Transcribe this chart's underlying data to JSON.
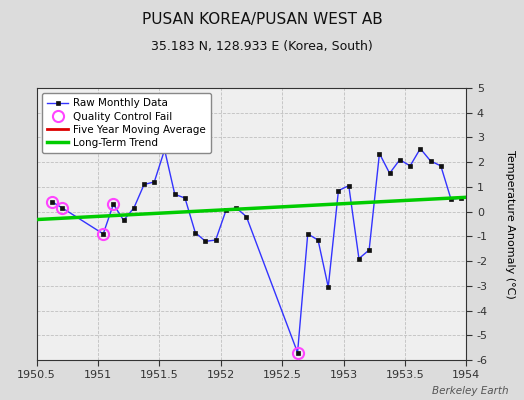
{
  "title": "PUSAN KOREA/PUSAN WEST AB",
  "subtitle": "35.183 N, 128.933 E (Korea, South)",
  "ylabel": "Temperature Anomaly (°C)",
  "watermark": "Berkeley Earth",
  "xlim": [
    1950.5,
    1954.0
  ],
  "ylim": [
    -6,
    5
  ],
  "yticks": [
    -6,
    -5,
    -4,
    -3,
    -2,
    -1,
    0,
    1,
    2,
    3,
    4,
    5
  ],
  "xticks": [
    1950.5,
    1951,
    1951.5,
    1952,
    1952.5,
    1953,
    1953.5,
    1954
  ],
  "background_color": "#dcdcdc",
  "plot_background": "#efefef",
  "raw_x": [
    1950.625,
    1950.708,
    1951.042,
    1951.125,
    1951.208,
    1951.292,
    1951.375,
    1951.458,
    1951.542,
    1951.625,
    1951.708,
    1951.792,
    1951.875,
    1951.958,
    1952.042,
    1952.125,
    1952.208,
    1952.625,
    1952.708,
    1952.792,
    1952.875,
    1952.958,
    1953.042,
    1953.125,
    1953.208,
    1953.292,
    1953.375,
    1953.458,
    1953.542,
    1953.625,
    1953.708,
    1953.792,
    1953.875,
    1953.958
  ],
  "raw_y": [
    0.4,
    0.15,
    -0.9,
    0.3,
    -0.35,
    0.15,
    1.1,
    1.2,
    2.5,
    0.7,
    0.55,
    -0.85,
    -1.2,
    -1.15,
    0.05,
    0.15,
    -0.2,
    -5.7,
    -0.9,
    -1.15,
    -3.05,
    0.85,
    1.05,
    -1.9,
    -1.55,
    2.35,
    1.55,
    2.1,
    1.85,
    2.55,
    2.05,
    1.85,
    0.5,
    0.55
  ],
  "qc_fail_x": [
    1950.625,
    1950.708,
    1951.042,
    1951.125,
    1952.625
  ],
  "qc_fail_y": [
    0.4,
    0.15,
    -0.9,
    0.3,
    -5.7
  ],
  "trend_x": [
    1950.5,
    1954.0
  ],
  "trend_y": [
    -0.32,
    0.58
  ],
  "raw_color": "#3333ff",
  "raw_marker_color": "#111111",
  "qc_color": "#ff44ff",
  "trend_color": "#00cc00",
  "moving_avg_color": "#dd0000",
  "grid_color": "#c0c0c0",
  "title_fontsize": 11,
  "subtitle_fontsize": 9,
  "tick_fontsize": 8,
  "ylabel_fontsize": 8
}
